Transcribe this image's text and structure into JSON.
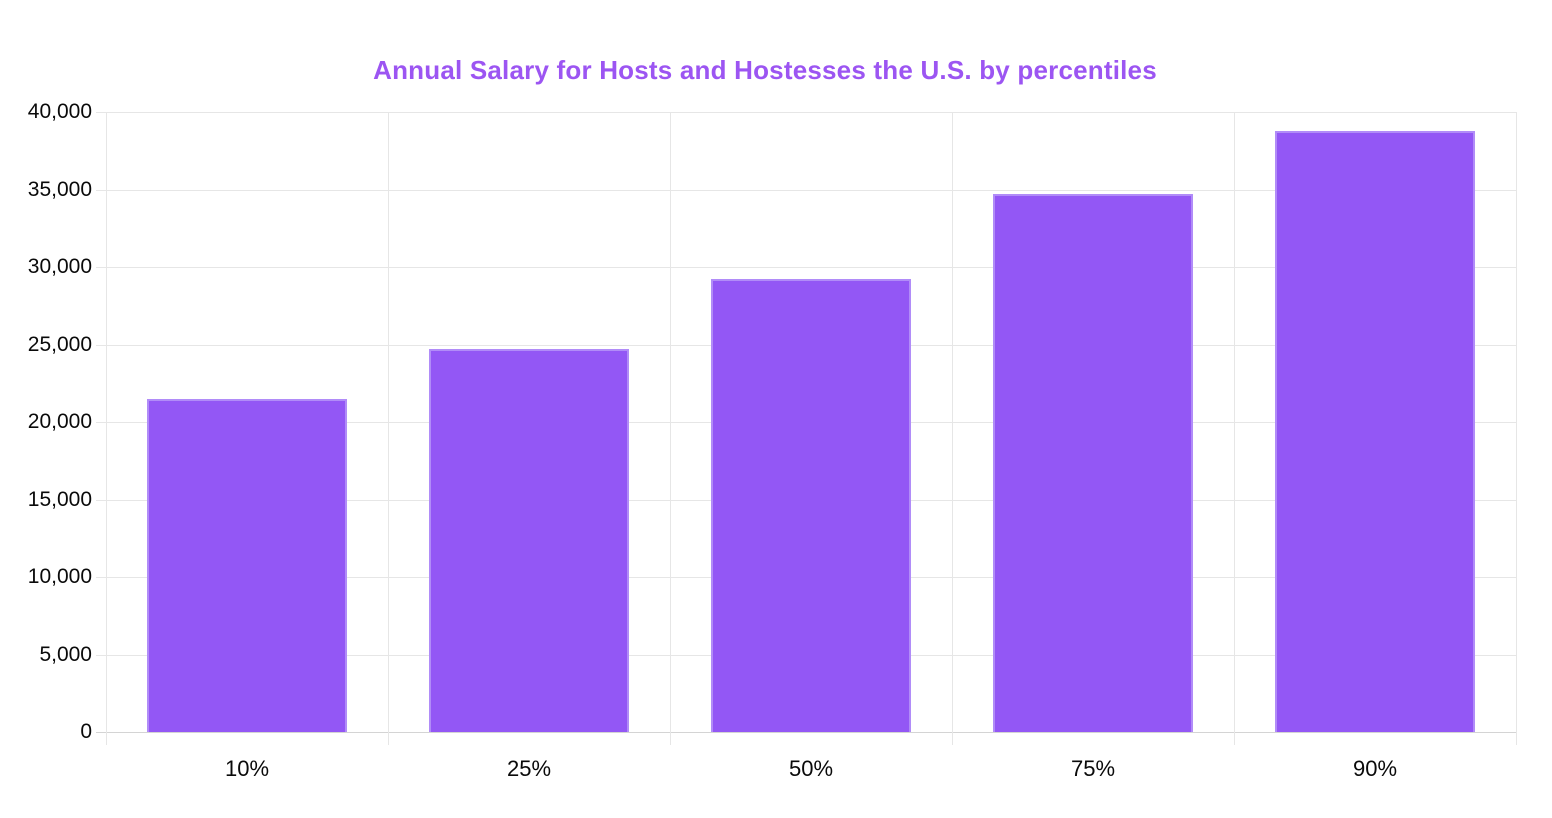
{
  "title": "Annual Salary for Hosts and Hostesses the U.S. by percentiles",
  "colors": {
    "background": "#ffffff",
    "title": "#9c55f2",
    "bar_fill": "#9357f5",
    "bar_border": "#b18cf8",
    "gridline": "#e6e6e6",
    "baseline": "#d4d4d4",
    "tick_text": "#0a0a0a"
  },
  "chart_data": {
    "type": "bar",
    "title": "Annual Salary for Hosts and Hostesses the U.S. by percentiles",
    "categories": [
      "10%",
      "25%",
      "50%",
      "75%",
      "90%"
    ],
    "values": [
      21500,
      24700,
      29200,
      34700,
      38800
    ],
    "xlabel": "",
    "ylabel": "",
    "ylim": [
      0,
      40000
    ],
    "ytick_step": 5000,
    "ytick_labels": [
      "0",
      "5,000",
      "10,000",
      "15,000",
      "20,000",
      "25,000",
      "30,000",
      "35,000",
      "40,000"
    ],
    "grid": true,
    "legend": false,
    "series_name": "Annual Salary"
  }
}
